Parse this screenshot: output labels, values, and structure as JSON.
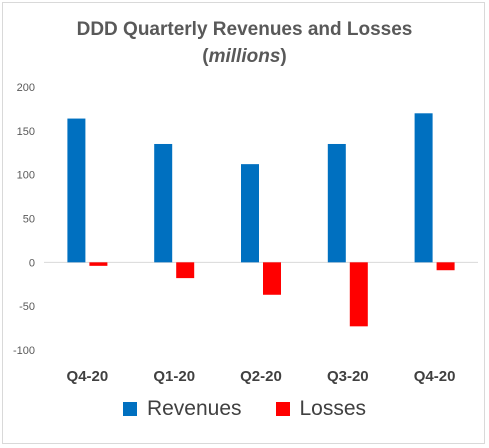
{
  "title": "DDD Quarterly Revenues and Losses",
  "subtitle_open": "(",
  "subtitle_unit": "millions",
  "subtitle_close": ")",
  "legend": {
    "revenues": "Revenues",
    "losses": "Losses"
  },
  "colors": {
    "revenues": "#0070c0",
    "losses": "#ff0000",
    "grid": "#d9d9d9",
    "zero_line": "#d9d9d9"
  },
  "chart_data": {
    "type": "bar",
    "categories": [
      "Q4-20",
      "Q1-20",
      "Q2-20",
      "Q3-20",
      "Q4-20"
    ],
    "series": [
      {
        "name": "Revenues",
        "values": [
          164,
          135,
          112,
          135,
          170
        ]
      },
      {
        "name": "Losses",
        "values": [
          -4,
          -18,
          -37,
          -73,
          -9
        ]
      }
    ],
    "ylim": [
      -100,
      200
    ],
    "yticks": [
      200,
      150,
      100,
      50,
      0,
      -50,
      -100
    ],
    "grid": false,
    "legend_position": "bottom"
  }
}
